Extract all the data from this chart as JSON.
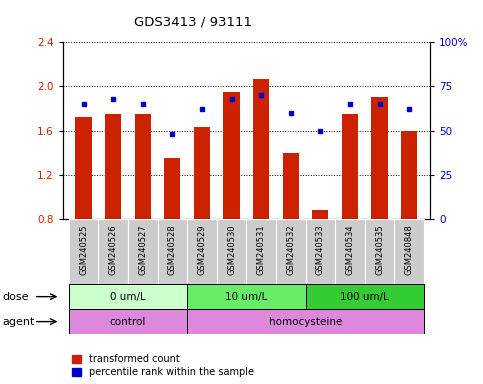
{
  "title": "GDS3413 / 93111",
  "samples": [
    "GSM240525",
    "GSM240526",
    "GSM240527",
    "GSM240528",
    "GSM240529",
    "GSM240530",
    "GSM240531",
    "GSM240532",
    "GSM240533",
    "GSM240534",
    "GSM240535",
    "GSM240848"
  ],
  "red_values": [
    1.72,
    1.75,
    1.75,
    1.35,
    1.63,
    1.95,
    2.07,
    1.4,
    0.88,
    1.75,
    1.9,
    1.6
  ],
  "blue_values": [
    65,
    68,
    65,
    48,
    62,
    68,
    70,
    60,
    50,
    65,
    65,
    62
  ],
  "ylim_left": [
    0.8,
    2.4
  ],
  "ylim_right": [
    0,
    100
  ],
  "yticks_left": [
    0.8,
    1.2,
    1.6,
    2.0,
    2.4
  ],
  "yticks_right": [
    0,
    25,
    50,
    75,
    100
  ],
  "ytick_labels_right": [
    "0",
    "25",
    "50",
    "75",
    "100%"
  ],
  "bar_color": "#cc2200",
  "dot_color": "#0000cc",
  "dose_colors": [
    "#ccffcc",
    "#66ee66",
    "#33cc33"
  ],
  "dose_labels": [
    "0 um/L",
    "10 um/L",
    "100 um/L"
  ],
  "dose_ranges": [
    [
      0,
      4
    ],
    [
      4,
      8
    ],
    [
      8,
      12
    ]
  ],
  "agent_colors": [
    "#dd88dd",
    "#dd88dd"
  ],
  "agent_labels": [
    "control",
    "homocysteine"
  ],
  "agent_ranges": [
    [
      0,
      4
    ],
    [
      4,
      12
    ]
  ],
  "dose_label": "dose",
  "agent_label": "agent",
  "legend_red": "transformed count",
  "legend_blue": "percentile rank within the sample",
  "bar_width": 0.55,
  "baseline": 0.8
}
